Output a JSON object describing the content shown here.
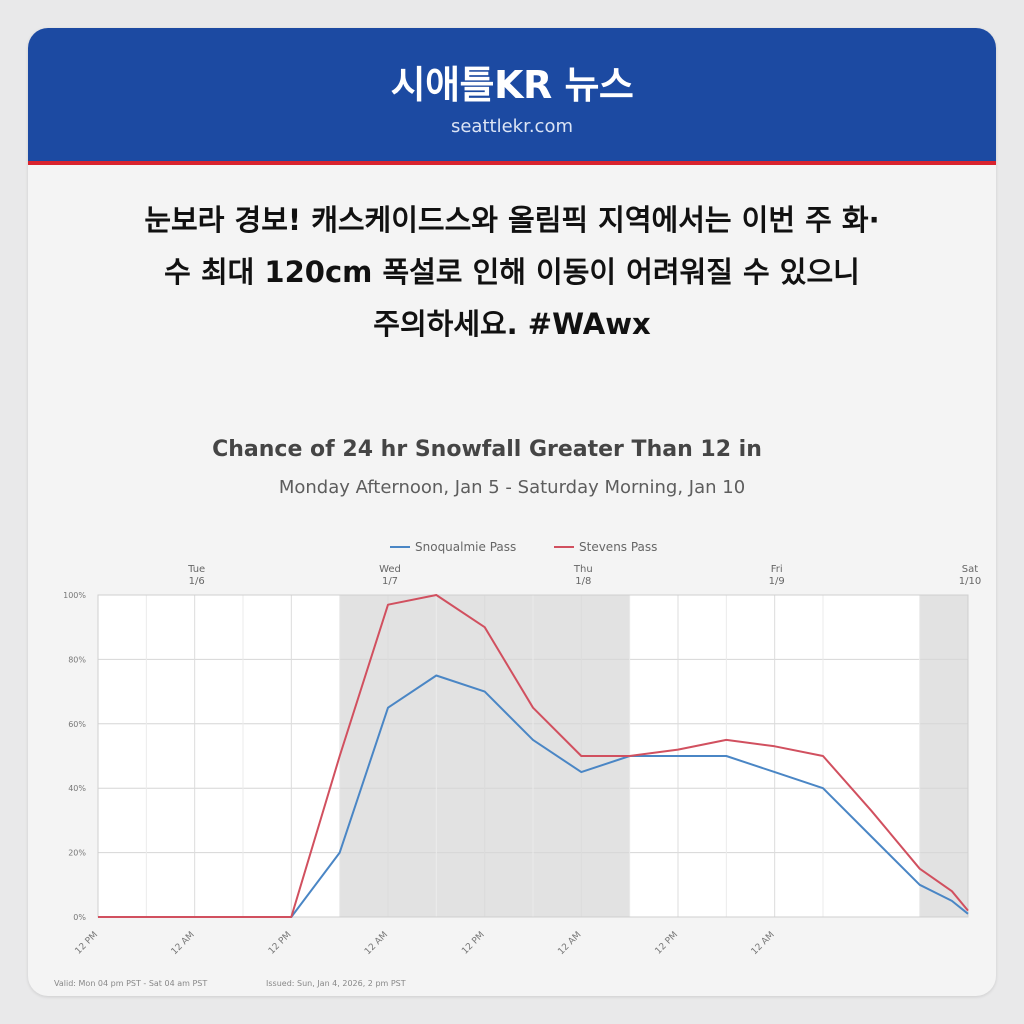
{
  "header": {
    "brand": "시애틀KR 뉴스",
    "site": "seattlekr.com"
  },
  "headline": {
    "line1": "눈보라 경보! 캐스케이드스와 올림픽 지역에서는 이번 주 화·",
    "line2": "수 최대 120cm 폭설로 인해 이동이 어려워질 수 있으니",
    "line3": "주의하세요. #WAwx"
  },
  "colors": {
    "header_bg": "#1c4aa2",
    "header_rule": "#d9232e",
    "snoqualmie": "#4a86c5",
    "stevens": "#d1505f",
    "night_shade": "#e2e2e2"
  },
  "chart_data": {
    "type": "line",
    "title": "Chance of 24 hr Snowfall Greater Than 12 in",
    "subtitle": "Monday Afternoon, Jan 5 - Saturday Morning, Jan 10",
    "x": [
      "Mon 12 PM",
      "Tue 12 AM",
      "Tue 12 PM",
      "Tue 6 PM",
      "Wed 12 AM",
      "Wed 6 AM",
      "Wed 12 PM",
      "Wed 6 PM",
      "Thu 12 AM",
      "Thu 6 AM",
      "Thu 12 PM",
      "Thu 6 PM",
      "Fri 12 AM",
      "Fri 6 AM",
      "Fri 12 PM",
      "Fri 6 PM",
      "Sat 12 AM",
      "Sat 4 AM"
    ],
    "series": [
      {
        "name": "Snoqualmie Pass",
        "values": [
          0,
          0,
          0,
          20,
          65,
          75,
          70,
          55,
          45,
          50,
          50,
          50,
          45,
          40,
          25,
          10,
          5,
          1
        ]
      },
      {
        "name": "Stevens Pass",
        "values": [
          0,
          0,
          0,
          50,
          97,
          100,
          90,
          65,
          50,
          50,
          52,
          55,
          53,
          50,
          33,
          15,
          8,
          2
        ]
      }
    ],
    "ylim": [
      0,
      100
    ],
    "y_ticks": [
      "0%",
      "20%",
      "40%",
      "60%",
      "80%",
      "100%"
    ],
    "x_ticks": [
      "12 AM",
      "12 PM",
      "12 AM",
      "12 PM",
      "12 AM",
      "12 PM",
      "12 AM",
      "12 PM",
      "12 AM"
    ],
    "days": [
      {
        "name": "Mon",
        "date": "1/5"
      },
      {
        "name": "Tue",
        "date": "1/6"
      },
      {
        "name": "Wed",
        "date": "1/7"
      },
      {
        "name": "Thu",
        "date": "1/8"
      },
      {
        "name": "Fri",
        "date": "1/9"
      },
      {
        "name": "Sat",
        "date": "1/10"
      }
    ],
    "legend_position": "top-center",
    "grid": true,
    "footer_valid": "Valid: Mon 04 pm PST - Sat 04 am PST",
    "footer_issued": "Issued: Sun, Jan 4, 2026, 2 pm PST"
  }
}
